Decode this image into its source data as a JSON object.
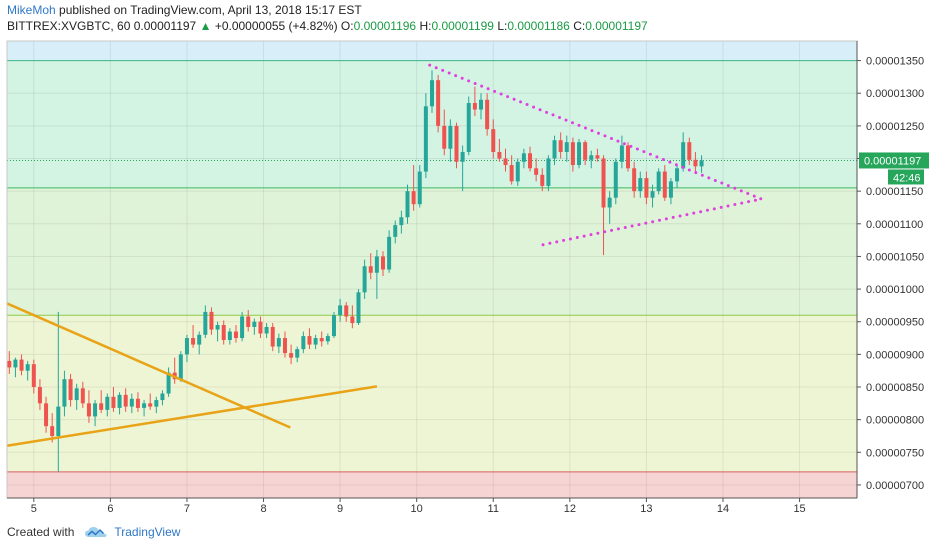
{
  "header": {
    "author": "MikeMoh",
    "published": "published on TradingView.com, April 13, 2018 15:17 EST",
    "symbol": "BITTREX:XVGBTC, 60",
    "last": "0.00001197",
    "change": "+0.00000055 (+4.82%)",
    "o_label": "O:",
    "o_value": "0.00001196",
    "h_label": "H:",
    "h_value": "0.00001199",
    "l_label": "L:",
    "l_value": "0.00001186",
    "c_label": "C:",
    "c_value": "0.00001197"
  },
  "footer": {
    "created_with": "Created with",
    "brand": "TradingView"
  },
  "colors": {
    "up": "#26a69a",
    "down": "#ef5350",
    "trend_orange": "#e8a317",
    "triangle_magenta": "#e040e0",
    "price_badge": "#26a65b",
    "zone_blue": "#d8eef8",
    "zone_teal": "#d3f3e3",
    "zone_green": "#dff3d8",
    "zone_yellow": "#eef5d4",
    "zone_red": "#f6d4d4"
  },
  "chart_data": {
    "type": "candlestick",
    "x_axis": {
      "ticks": [
        5,
        6,
        7,
        8,
        9,
        10,
        11,
        12,
        13,
        14,
        15
      ],
      "tick_labels": [
        "5",
        "6",
        "7",
        "8",
        "9",
        "10",
        "11",
        "12",
        "13",
        "14",
        "15"
      ],
      "range": [
        4.65,
        15.75
      ]
    },
    "y_axis": {
      "range": [
        6.8e-06,
        1.38e-05
      ],
      "ticks": [
        7e-06,
        7.5e-06,
        8e-06,
        8.5e-06,
        9e-06,
        9.5e-06,
        1e-05,
        1.05e-05,
        1.1e-05,
        1.15e-05,
        1.2e-05,
        1.25e-05,
        1.3e-05,
        1.35e-05
      ],
      "tick_labels": [
        "0.00000700",
        "0.00000750",
        "0.00000800",
        "0.00000850",
        "0.00000900",
        "0.00000950",
        "0.00001000",
        "0.00001050",
        "0.00001100",
        "0.00001150",
        "0.00001200",
        "0.00001250",
        "0.00001300",
        "0.00001350"
      ]
    },
    "zones": [
      {
        "from": 1.35e-05,
        "to": 1.38e-05,
        "color": "#d8eef8"
      },
      {
        "from": 1.155e-05,
        "to": 1.35e-05,
        "color": "#d3f3e3"
      },
      {
        "from": 9.6e-06,
        "to": 1.155e-05,
        "color": "#dff3d8"
      },
      {
        "from": 7.2e-06,
        "to": 9.6e-06,
        "color": "#eef5d4"
      },
      {
        "from": 6.8e-06,
        "to": 7.2e-06,
        "color": "#f6d4d4"
      }
    ],
    "horizontal_lines": [
      1.35e-05,
      1.155e-05,
      9.6e-06,
      7.2e-06
    ],
    "last_price": 1.197e-05,
    "last_price_label": "0.00001197",
    "countdown_label": "42:46",
    "trendlines": [
      {
        "style": "solid",
        "color": "#e8a317",
        "from": [
          4.65,
          9.78e-06
        ],
        "to": [
          8.35,
          7.88e-06
        ]
      },
      {
        "style": "solid",
        "color": "#e8a317",
        "from": [
          4.65,
          7.6e-06
        ],
        "to": [
          9.48,
          8.51e-06
        ]
      },
      {
        "style": "dotted",
        "color": "#e040e0",
        "from": [
          10.17,
          1.343e-05
        ],
        "to": [
          14.5,
          1.138e-05
        ]
      },
      {
        "style": "dotted",
        "color": "#e040e0",
        "from": [
          11.65,
          1.068e-05
        ],
        "to": [
          14.5,
          1.138e-05
        ]
      }
    ],
    "candles": [
      [
        4.68,
        8.9e-06,
        9.05e-06,
        8.7e-06,
        8.8e-06
      ],
      [
        4.76,
        8.8e-06,
        8.95e-06,
        8.65e-06,
        8.92e-06
      ],
      [
        4.84,
        8.92e-06,
        9e-06,
        8.68e-06,
        8.75e-06
      ],
      [
        4.92,
        8.75e-06,
        8.9e-06,
        8.6e-06,
        8.85e-06
      ],
      [
        5.0,
        8.85e-06,
        8.92e-06,
        8.4e-06,
        8.5e-06
      ],
      [
        5.08,
        8.5e-06,
        8.62e-06,
        8.15e-06,
        8.25e-06
      ],
      [
        5.16,
        8.25e-06,
        8.35e-06,
        7.8e-06,
        7.9e-06
      ],
      [
        5.24,
        7.9e-06,
        8.1e-06,
        7.65e-06,
        7.75e-06
      ],
      [
        5.32,
        7.75e-06,
        9.65e-06,
        7.2e-06,
        8.2e-06
      ],
      [
        5.4,
        8.2e-06,
        8.75e-06,
        8.05e-06,
        8.62e-06
      ],
      [
        5.48,
        8.62e-06,
        8.7e-06,
        8.2e-06,
        8.3e-06
      ],
      [
        5.56,
        8.3e-06,
        8.55e-06,
        8.15e-06,
        8.48e-06
      ],
      [
        5.64,
        8.48e-06,
        8.58e-06,
        8.18e-06,
        8.25e-06
      ],
      [
        5.72,
        8.25e-06,
        8.45e-06,
        7.95e-06,
        8.05e-06
      ],
      [
        5.8,
        8.05e-06,
        8.3e-06,
        7.9e-06,
        8.25e-06
      ],
      [
        5.88,
        8.25e-06,
        8.45e-06,
        8.1e-06,
        8.15e-06
      ],
      [
        5.96,
        8.15e-06,
        8.4e-06,
        8.05e-06,
        8.35e-06
      ],
      [
        6.04,
        8.35e-06,
        8.5e-06,
        8.12e-06,
        8.18e-06
      ],
      [
        6.12,
        8.18e-06,
        8.42e-06,
        8.08e-06,
        8.38e-06
      ],
      [
        6.2,
        8.38e-06,
        8.48e-06,
        8.12e-06,
        8.2e-06
      ],
      [
        6.28,
        8.2e-06,
        8.4e-06,
        8.1e-06,
        8.32e-06
      ],
      [
        6.36,
        8.32e-06,
        8.42e-06,
        8.12e-06,
        8.18e-06
      ],
      [
        6.44,
        8.18e-06,
        8.3e-06,
        8.05e-06,
        8.25e-06
      ],
      [
        6.52,
        8.25e-06,
        8.4e-06,
        8.15e-06,
        8.2e-06
      ],
      [
        6.6,
        8.2e-06,
        8.35e-06,
        8.1e-06,
        8.3e-06
      ],
      [
        6.68,
        8.3e-06,
        8.45e-06,
        8.22e-06,
        8.4e-06
      ],
      [
        6.76,
        8.4e-06,
        8.8e-06,
        8.35e-06,
        8.72e-06
      ],
      [
        6.84,
        8.72e-06,
        8.95e-06,
        8.55e-06,
        8.62e-06
      ],
      [
        6.92,
        8.62e-06,
        9.05e-06,
        8.58e-06,
        9e-06
      ],
      [
        7.0,
        9e-06,
        9.3e-06,
        8.88e-06,
        9.25e-06
      ],
      [
        7.08,
        9.25e-06,
        9.45e-06,
        9.1e-06,
        9.15e-06
      ],
      [
        7.16,
        9.15e-06,
        9.35e-06,
        9e-06,
        9.3e-06
      ],
      [
        7.24,
        9.3e-06,
        9.75e-06,
        9.25e-06,
        9.65e-06
      ],
      [
        7.32,
        9.65e-06,
        9.72e-06,
        9.3e-06,
        9.38e-06
      ],
      [
        7.4,
        9.38e-06,
        9.5e-06,
        9.2e-06,
        9.45e-06
      ],
      [
        7.48,
        9.45e-06,
        9.52e-06,
        9.15e-06,
        9.22e-06
      ],
      [
        7.56,
        9.22e-06,
        9.4e-06,
        9.15e-06,
        9.35e-06
      ],
      [
        7.64,
        9.35e-06,
        9.45e-06,
        9.18e-06,
        9.25e-06
      ],
      [
        7.72,
        9.25e-06,
        9.65e-06,
        9.2e-06,
        9.58e-06
      ],
      [
        7.8,
        9.58e-06,
        9.68e-06,
        9.35e-06,
        9.42e-06
      ],
      [
        7.88,
        9.42e-06,
        9.55e-06,
        9.3e-06,
        9.5e-06
      ],
      [
        7.96,
        9.5e-06,
        9.58e-06,
        9.25e-06,
        9.32e-06
      ],
      [
        8.04,
        9.32e-06,
        9.48e-06,
        9.25e-06,
        9.42e-06
      ],
      [
        8.12,
        9.42e-06,
        9.48e-06,
        9.05e-06,
        9.12e-06
      ],
      [
        8.2,
        9.12e-06,
        9.32e-06,
        9.02e-06,
        9.25e-06
      ],
      [
        8.28,
        9.25e-06,
        9.35e-06,
        8.95e-06,
        9.02e-06
      ],
      [
        8.36,
        9.02e-06,
        9.15e-06,
        8.85e-06,
        8.95e-06
      ],
      [
        8.44,
        8.95e-06,
        9.12e-06,
        8.88e-06,
        9.08e-06
      ],
      [
        8.52,
        9.08e-06,
        9.35e-06,
        9.02e-06,
        9.28e-06
      ],
      [
        8.6,
        9.28e-06,
        9.4e-06,
        9.08e-06,
        9.15e-06
      ],
      [
        8.68,
        9.15e-06,
        9.3e-06,
        9.08e-06,
        9.25e-06
      ],
      [
        8.76,
        9.25e-06,
        9.35e-06,
        9.12e-06,
        9.2e-06
      ],
      [
        8.84,
        9.2e-06,
        9.32e-06,
        9.15e-06,
        9.28e-06
      ],
      [
        8.92,
        9.28e-06,
        9.65e-06,
        9.25e-06,
        9.6e-06
      ],
      [
        9.0,
        9.6e-06,
        9.85e-06,
        9.5e-06,
        9.75e-06
      ],
      [
        9.08,
        9.75e-06,
        9.8e-06,
        9.5e-06,
        9.58e-06
      ],
      [
        9.16,
        9.58e-06,
        9.75e-06,
        9.4e-06,
        9.48e-06
      ],
      [
        9.24,
        9.48e-06,
        1e-05,
        9.45e-06,
        9.95e-06
      ],
      [
        9.32,
        9.95e-06,
        1.045e-05,
        9.85e-06,
        1.035e-05
      ],
      [
        9.4,
        1.035e-05,
        1.055e-05,
        1.015e-05,
        1.025e-05
      ],
      [
        9.48,
        1.025e-05,
        1.06e-05,
        9.85e-06,
        1.05e-05
      ],
      [
        9.56,
        1.05e-05,
        1.058e-05,
        1.02e-05,
        1.03e-05
      ],
      [
        9.64,
        1.03e-05,
        1.09e-05,
        1.025e-05,
        1.08e-05
      ],
      [
        9.72,
        1.08e-05,
        1.105e-05,
        1.07e-05,
        1.098e-05
      ],
      [
        9.8,
        1.098e-05,
        1.12e-05,
        1.085e-05,
        1.11e-05
      ],
      [
        9.88,
        1.11e-05,
        1.16e-05,
        1.1e-05,
        1.15e-05
      ],
      [
        9.96,
        1.15e-05,
        1.19e-05,
        1.12e-05,
        1.13e-05
      ],
      [
        10.04,
        1.13e-05,
        1.19e-05,
        1.125e-05,
        1.18e-05
      ],
      [
        10.12,
        1.18e-05,
        1.3e-05,
        1.17e-05,
        1.28e-05
      ],
      [
        10.2,
        1.28e-05,
        1.335e-05,
        1.27e-05,
        1.32e-05
      ],
      [
        10.28,
        1.32e-05,
        1.328e-05,
        1.24e-05,
        1.25e-05
      ],
      [
        10.36,
        1.25e-05,
        1.275e-05,
        1.205e-05,
        1.215e-05
      ],
      [
        10.44,
        1.215e-05,
        1.26e-05,
        1.195e-05,
        1.25e-05
      ],
      [
        10.52,
        1.25e-05,
        1.255e-05,
        1.185e-05,
        1.195e-05
      ],
      [
        10.6,
        1.195e-05,
        1.22e-05,
        1.15e-05,
        1.21e-05
      ],
      [
        10.68,
        1.21e-05,
        1.295e-05,
        1.205e-05,
        1.285e-05
      ],
      [
        10.76,
        1.285e-05,
        1.31e-05,
        1.265e-05,
        1.275e-05
      ],
      [
        10.84,
        1.275e-05,
        1.3e-05,
        1.26e-05,
        1.29e-05
      ],
      [
        10.92,
        1.29e-05,
        1.3e-05,
        1.235e-05,
        1.245e-05
      ],
      [
        11.0,
        1.245e-05,
        1.26e-05,
        1.2e-05,
        1.21e-05
      ],
      [
        11.08,
        1.21e-05,
        1.23e-05,
        1.195e-05,
        1.2e-05
      ],
      [
        11.16,
        1.2e-05,
        1.215e-05,
        1.18e-05,
        1.19e-05
      ],
      [
        11.24,
        1.19e-05,
        1.205e-05,
        1.16e-05,
        1.165e-05
      ],
      [
        11.32,
        1.165e-05,
        1.2e-05,
        1.158e-05,
        1.195e-05
      ],
      [
        11.4,
        1.195e-05,
        1.215e-05,
        1.185e-05,
        1.208e-05
      ],
      [
        11.48,
        1.208e-05,
        1.218e-05,
        1.18e-05,
        1.185e-05
      ],
      [
        11.56,
        1.185e-05,
        1.2e-05,
        1.165e-05,
        1.175e-05
      ],
      [
        11.64,
        1.175e-05,
        1.185e-05,
        1.15e-05,
        1.158e-05
      ],
      [
        11.72,
        1.158e-05,
        1.205e-05,
        1.15e-05,
        1.2e-05
      ],
      [
        11.8,
        1.2e-05,
        1.235e-05,
        1.19e-05,
        1.228e-05
      ],
      [
        11.88,
        1.228e-05,
        1.24e-05,
        1.2e-05,
        1.21e-05
      ],
      [
        11.96,
        1.21e-05,
        1.235e-05,
        1.195e-05,
        1.225e-05
      ],
      [
        12.04,
        1.225e-05,
        1.232e-05,
        1.18e-05,
        1.19e-05
      ],
      [
        12.12,
        1.19e-05,
        1.23e-05,
        1.185e-05,
        1.225e-05
      ],
      [
        12.2,
        1.225e-05,
        1.228e-05,
        1.19e-05,
        1.198e-05
      ],
      [
        12.28,
        1.198e-05,
        1.212e-05,
        1.185e-05,
        1.205e-05
      ],
      [
        12.36,
        1.205e-05,
        1.215e-05,
        1.195e-05,
        1.2e-05
      ],
      [
        12.44,
        1.2e-05,
        1.205e-05,
        1.052e-05,
        1.125e-05
      ],
      [
        12.52,
        1.125e-05,
        1.15e-05,
        1.1e-05,
        1.14e-05
      ],
      [
        12.6,
        1.14e-05,
        1.2e-05,
        1.13e-05,
        1.195e-05
      ],
      [
        12.68,
        1.195e-05,
        1.235e-05,
        1.185e-05,
        1.22e-05
      ],
      [
        12.76,
        1.22e-05,
        1.225e-05,
        1.18e-05,
        1.185e-05
      ],
      [
        12.84,
        1.185e-05,
        1.195e-05,
        1.14e-05,
        1.15e-05
      ],
      [
        12.92,
        1.15e-05,
        1.18e-05,
        1.14e-05,
        1.17e-05
      ],
      [
        13.0,
        1.17e-05,
        1.18e-05,
        1.13e-05,
        1.14e-05
      ],
      [
        13.08,
        1.14e-05,
        1.16e-05,
        1.125e-05,
        1.15e-05
      ],
      [
        13.16,
        1.15e-05,
        1.185e-05,
        1.145e-05,
        1.18e-05
      ],
      [
        13.24,
        1.18e-05,
        1.19e-05,
        1.135e-05,
        1.14e-05
      ],
      [
        13.32,
        1.14e-05,
        1.17e-05,
        1.13e-05,
        1.165e-05
      ],
      [
        13.4,
        1.165e-05,
        1.19e-05,
        1.155e-05,
        1.185e-05
      ],
      [
        13.48,
        1.185e-05,
        1.24e-05,
        1.18e-05,
        1.225e-05
      ],
      [
        13.56,
        1.225e-05,
        1.232e-05,
        1.19e-05,
        1.198e-05
      ],
      [
        13.64,
        1.198e-05,
        1.21e-05,
        1.18e-05,
        1.188e-05
      ],
      [
        13.72,
        1.188e-05,
        1.205e-05,
        1.178e-05,
        1.197e-05
      ]
    ]
  }
}
